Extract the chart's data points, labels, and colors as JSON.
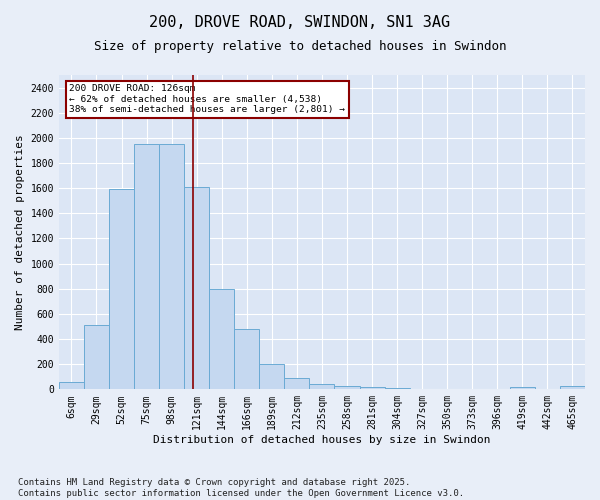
{
  "title": "200, DROVE ROAD, SWINDON, SN1 3AG",
  "subtitle": "Size of property relative to detached houses in Swindon",
  "xlabel": "Distribution of detached houses by size in Swindon",
  "ylabel": "Number of detached properties",
  "bar_labels": [
    "6sqm",
    "29sqm",
    "52sqm",
    "75sqm",
    "98sqm",
    "121sqm",
    "144sqm",
    "166sqm",
    "189sqm",
    "212sqm",
    "235sqm",
    "258sqm",
    "281sqm",
    "304sqm",
    "327sqm",
    "350sqm",
    "373sqm",
    "396sqm",
    "419sqm",
    "442sqm",
    "465sqm"
  ],
  "bar_values": [
    55,
    510,
    1590,
    1950,
    1950,
    1610,
    800,
    480,
    200,
    90,
    45,
    30,
    20,
    10,
    2,
    2,
    1,
    1,
    20,
    1,
    25
  ],
  "bar_color": "#c5d8f0",
  "bar_edge_color": "#6aaad4",
  "vline_x_index": 5,
  "vline_color": "#8b0000",
  "annotation_text": "200 DROVE ROAD: 126sqm\n← 62% of detached houses are smaller (4,538)\n38% of semi-detached houses are larger (2,801) →",
  "annotation_box_color": "#8b0000",
  "ylim": [
    0,
    2500
  ],
  "yticks": [
    0,
    200,
    400,
    600,
    800,
    1000,
    1200,
    1400,
    1600,
    1800,
    2000,
    2200,
    2400
  ],
  "bg_color": "#dce6f5",
  "grid_color": "#ffffff",
  "fig_bg_color": "#e8eef8",
  "footer": "Contains HM Land Registry data © Crown copyright and database right 2025.\nContains public sector information licensed under the Open Government Licence v3.0.",
  "title_fontsize": 11,
  "subtitle_fontsize": 9,
  "xlabel_fontsize": 8,
  "ylabel_fontsize": 8,
  "tick_fontsize": 7,
  "footer_fontsize": 6.5
}
